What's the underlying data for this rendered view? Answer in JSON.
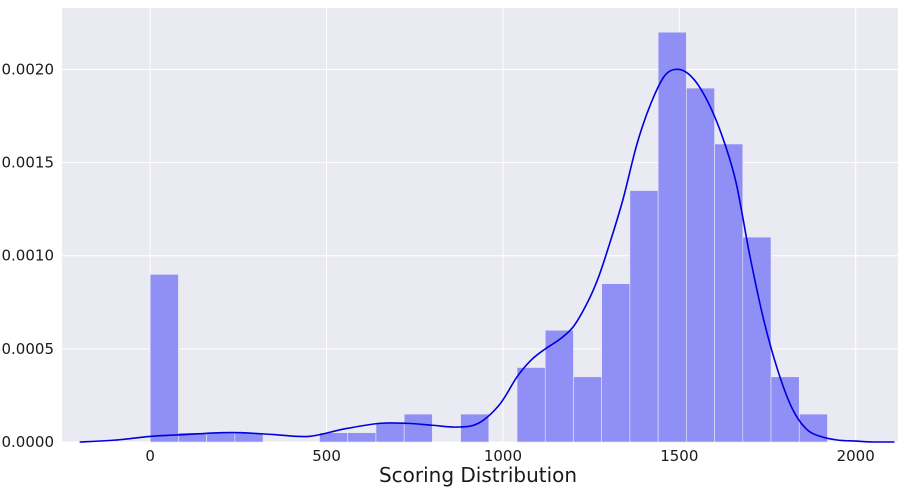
{
  "chart_data": {
    "type": "bar",
    "title": "",
    "xlabel": "Scoring Distribution",
    "ylabel": "",
    "xlim": [
      -250,
      2120
    ],
    "ylim": [
      0,
      0.00233
    ],
    "grid": true,
    "colors": {
      "background": "#eaeaf2",
      "grid": "#ffffff",
      "bars": "#8f8ff5",
      "kde": "#0000dd"
    },
    "x_ticks": [
      {
        "value": 0,
        "label": "0"
      },
      {
        "value": 500,
        "label": "500"
      },
      {
        "value": 1000,
        "label": "1000"
      },
      {
        "value": 1500,
        "label": "1500"
      },
      {
        "value": 2000,
        "label": "2000"
      }
    ],
    "y_ticks": [
      {
        "value": 0,
        "label": "0.0000"
      },
      {
        "value": 0.0005,
        "label": "0.0005"
      },
      {
        "value": 0.001,
        "label": "0.0010"
      },
      {
        "value": 0.0015,
        "label": "0.0015"
      },
      {
        "value": 0.002,
        "label": "0.0020"
      }
    ],
    "histogram": {
      "bin_start": 0,
      "bin_width": 80,
      "values": [
        0.0009,
        5e-05,
        5e-05,
        5e-05,
        0,
        0,
        5e-05,
        5e-05,
        0.0001,
        0.00015,
        0,
        0.00015,
        0,
        0.0004,
        0.0006,
        0.00035,
        0.00085,
        0.00135,
        0.0022,
        0.0019,
        0.0016,
        0.0011,
        0.00035,
        0.00015
      ]
    },
    "kde": {
      "x": [
        -200,
        -100,
        0,
        100,
        200,
        260,
        350,
        450,
        550,
        650,
        730,
        800,
        870,
        930,
        990,
        1040,
        1080,
        1120,
        1160,
        1200,
        1240,
        1270,
        1300,
        1340,
        1380,
        1420,
        1460,
        1500,
        1540,
        1580,
        1620,
        1660,
        1700,
        1740,
        1780,
        1820,
        1860,
        1900,
        1950,
        2000,
        2050,
        2110
      ],
      "y": [
        0,
        1e-05,
        3e-05,
        4e-05,
        5e-05,
        5e-05,
        4e-05,
        3e-05,
        7e-05,
        0.0001,
        0.0001,
        9e-05,
        8e-05,
        0.0001,
        0.0002,
        0.00035,
        0.00044,
        0.0005,
        0.00055,
        0.00062,
        0.00075,
        0.00088,
        0.00105,
        0.0013,
        0.0016,
        0.00182,
        0.00197,
        0.002,
        0.00195,
        0.00183,
        0.00165,
        0.0014,
        0.001,
        0.00065,
        0.00038,
        0.00018,
        7e-05,
        3e-05,
        1e-05,
        5e-06,
        0,
        0
      ]
    }
  }
}
